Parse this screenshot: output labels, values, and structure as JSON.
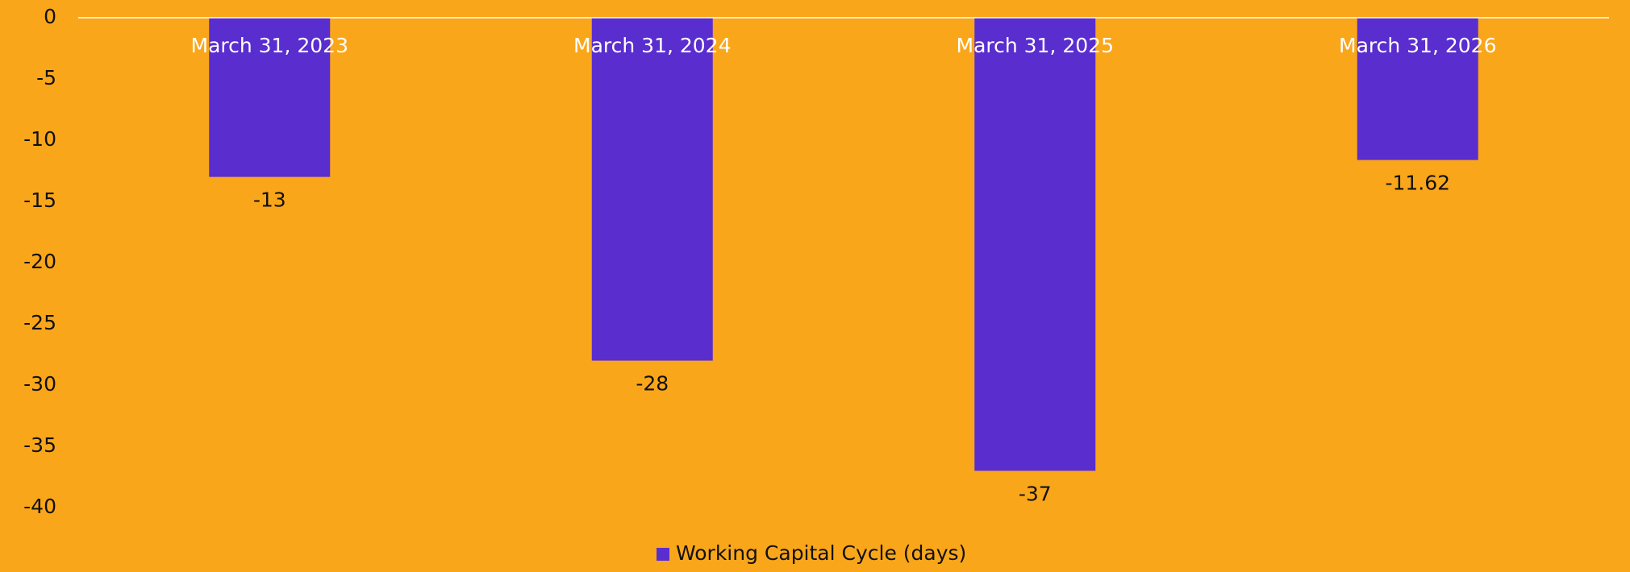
{
  "chart_data": {
    "type": "bar",
    "categories": [
      "March 31, 2023",
      "March 31, 2024",
      "March 31, 2025",
      "March 31, 2026"
    ],
    "series": [
      {
        "name": "Working Capital Cycle (days)",
        "color": "#5a2dcf",
        "values": [
          -13,
          -28,
          -37,
          -11.62
        ]
      }
    ],
    "ylim": [
      -40,
      0
    ],
    "yticks": [
      0,
      -5,
      -10,
      -15,
      -20,
      -25,
      -30,
      -35,
      -40
    ],
    "grid": false,
    "legend": "bottom",
    "background": "#faa61a",
    "axis_color": "#ffffff"
  }
}
